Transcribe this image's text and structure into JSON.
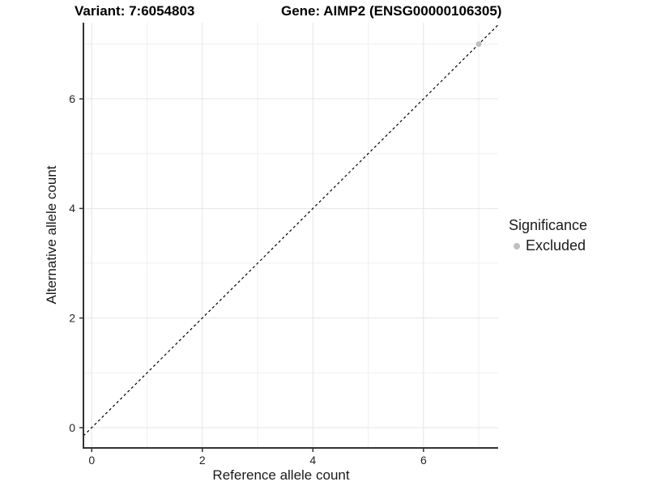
{
  "header": {
    "variant_title": "Variant: 7:6054803",
    "gene_title": "Gene: AIMP2 (ENSG00000106305)"
  },
  "legend": {
    "title": "Significance",
    "entries": [
      {
        "label": "Excluded",
        "color": "#bfbfbf"
      }
    ]
  },
  "chart_data": {
    "type": "scatter",
    "title": "Variant: 7:6054803   Gene: AIMP2 (ENSG00000106305)",
    "xlabel": "Reference allele count",
    "ylabel": "Alternative allele count",
    "xlim": [
      -0.15,
      7.35
    ],
    "ylim": [
      -0.37,
      7.39
    ],
    "xticks": [
      0,
      2,
      4,
      6
    ],
    "yticks": [
      0,
      2,
      4,
      6
    ],
    "x_minor_breaks": [
      1,
      3,
      5,
      7
    ],
    "y_minor_breaks": [
      1,
      3,
      5,
      7
    ],
    "grid": true,
    "legend_position": "right",
    "series": [
      {
        "name": "Excluded",
        "color": "#bfbfbf",
        "points": [
          {
            "x": 7,
            "y": 7
          }
        ]
      }
    ],
    "reference_line": {
      "type": "identity y=x",
      "style": "dashed",
      "color": "#000000"
    },
    "colors": {
      "grid_major": "#e4e4e4",
      "grid_minor": "#efefef",
      "axis_line": "#333333",
      "tick": "#333333",
      "tick_label": "#262626",
      "point": "#bfbfbf"
    }
  }
}
